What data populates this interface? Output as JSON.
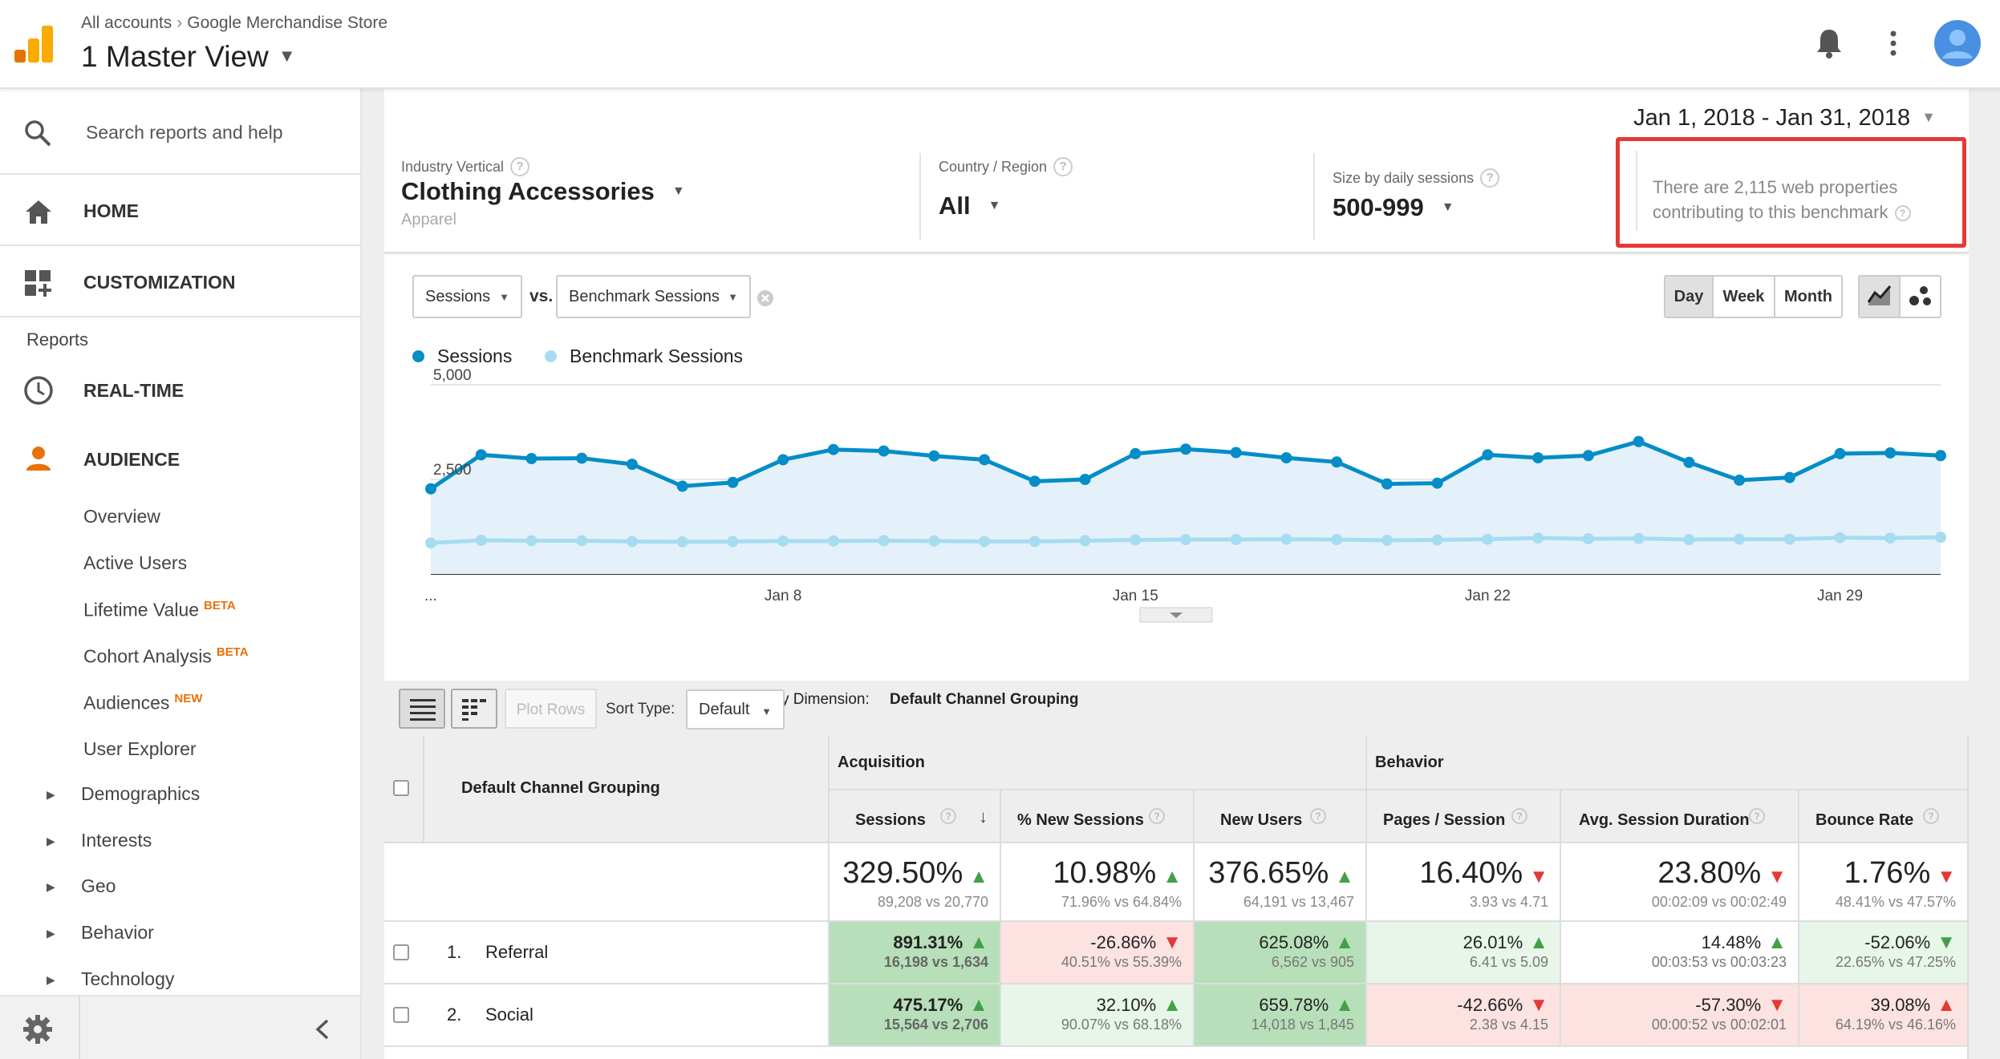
{
  "header": {
    "crumb_all": "All accounts",
    "crumb_property": "Google Merchandise Store",
    "view_title": "1 Master View"
  },
  "sidebar": {
    "search_placeholder": "Search reports and help",
    "home": "HOME",
    "customization": "CUSTOMIZATION",
    "reports_label": "Reports",
    "realtime": "REAL-TIME",
    "audience": "AUDIENCE",
    "audience_items": [
      {
        "label": "Overview",
        "badge": ""
      },
      {
        "label": "Active Users",
        "badge": ""
      },
      {
        "label": "Lifetime Value",
        "badge": "BETA"
      },
      {
        "label": "Cohort Analysis",
        "badge": "BETA"
      },
      {
        "label": "Audiences",
        "badge": "NEW"
      },
      {
        "label": "User Explorer",
        "badge": ""
      }
    ],
    "expandables": [
      "Demographics",
      "Interests",
      "Geo",
      "Behavior",
      "Technology"
    ]
  },
  "date_range": "Jan 1, 2018 - Jan 31, 2018",
  "filters": {
    "industry": {
      "label": "Industry Vertical",
      "value": "Clothing Accessories",
      "sub": "Apparel"
    },
    "country": {
      "label": "Country / Region",
      "value": "All"
    },
    "size": {
      "label": "Size by daily sessions",
      "value": "500-999"
    },
    "benchmark_note_line1": "There are 2,115 web properties",
    "benchmark_note_line2": "contributing to this benchmark"
  },
  "chart_controls": {
    "metric1": "Sessions",
    "vs": "vs.",
    "metric2": "Benchmark Sessions",
    "periods": [
      "Day",
      "Week",
      "Month"
    ],
    "active_period": "Day"
  },
  "chart_data": {
    "type": "area",
    "series": [
      {
        "name": "Sessions",
        "color": "#058dc7",
        "values": [
          2250,
          3150,
          3050,
          3060,
          2900,
          2320,
          2420,
          3020,
          3290,
          3250,
          3120,
          3020,
          2450,
          2500,
          3180,
          3300,
          3210,
          3070,
          2960,
          2380,
          2400,
          3150,
          3070,
          3130,
          3500,
          2950,
          2480,
          2550,
          3180,
          3200,
          3130
        ]
      },
      {
        "name": "Benchmark Sessions",
        "color": "#a6dcf1",
        "values": [
          820,
          890,
          880,
          880,
          860,
          850,
          860,
          870,
          870,
          880,
          870,
          860,
          860,
          880,
          900,
          910,
          910,
          920,
          910,
          890,
          900,
          920,
          950,
          930,
          940,
          910,
          920,
          920,
          960,
          950,
          970
        ]
      }
    ],
    "y_ticks": [
      "5,000",
      "2,500"
    ],
    "x_labels": [
      "...",
      "Jan 8",
      "Jan 15",
      "Jan 22",
      "Jan 29"
    ],
    "ylim": [
      0,
      5000
    ]
  },
  "primary_dimension": {
    "label": "Primary Dimension:",
    "value": "Default Channel Grouping"
  },
  "table_toolbar": {
    "plot_rows": "Plot Rows",
    "sort_label": "Sort Type:",
    "sort_value": "Default"
  },
  "table": {
    "dimension_header": "Default Channel Grouping",
    "group_acquisition": "Acquisition",
    "group_behavior": "Behavior",
    "columns": [
      "Sessions",
      "% New Sessions",
      "New Users",
      "Pages / Session",
      "Avg. Session Duration",
      "Bounce Rate"
    ],
    "totals": [
      {
        "value": "329.50%",
        "sub": "89,208 vs 20,770",
        "dir": "up"
      },
      {
        "value": "10.98%",
        "sub": "71.96% vs 64.84%",
        "dir": "up"
      },
      {
        "value": "376.65%",
        "sub": "64,191 vs 13,467",
        "dir": "up"
      },
      {
        "value": "16.40%",
        "sub": "3.93 vs 4.71",
        "dir": "down"
      },
      {
        "value": "23.80%",
        "sub": "00:02:09 vs 00:02:49",
        "dir": "down"
      },
      {
        "value": "1.76%",
        "sub": "48.41% vs 47.57%",
        "dir": "down"
      }
    ],
    "rows": [
      {
        "index": "1.",
        "name": "Referral",
        "cells": [
          {
            "value": "891.31%",
            "sub": "16,198 vs 1,634",
            "dir": "up"
          },
          {
            "value": "-26.86%",
            "sub": "40.51% vs 55.39%",
            "dir": "down"
          },
          {
            "value": "625.08%",
            "sub": "6,562 vs 905",
            "dir": "up"
          },
          {
            "value": "26.01%",
            "sub": "6.41 vs 5.09",
            "dir": "up"
          },
          {
            "value": "14.48%",
            "sub": "00:03:53 vs 00:03:23",
            "dir": "up"
          },
          {
            "value": "-52.06%",
            "sub": "22.65% vs 47.25%",
            "dir": "down-good"
          }
        ]
      },
      {
        "index": "2.",
        "name": "Social",
        "cells": [
          {
            "value": "475.17%",
            "sub": "15,564 vs 2,706",
            "dir": "up"
          },
          {
            "value": "32.10%",
            "sub": "90.07% vs 68.18%",
            "dir": "up"
          },
          {
            "value": "659.78%",
            "sub": "14,018 vs 1,845",
            "dir": "up"
          },
          {
            "value": "-42.66%",
            "sub": "2.38 vs 4.15",
            "dir": "down"
          },
          {
            "value": "-57.30%",
            "sub": "00:00:52 vs 00:02:01",
            "dir": "down"
          },
          {
            "value": "39.08%",
            "sub": "64.19% vs 46.16%",
            "dir": "up-bad"
          }
        ]
      }
    ]
  }
}
